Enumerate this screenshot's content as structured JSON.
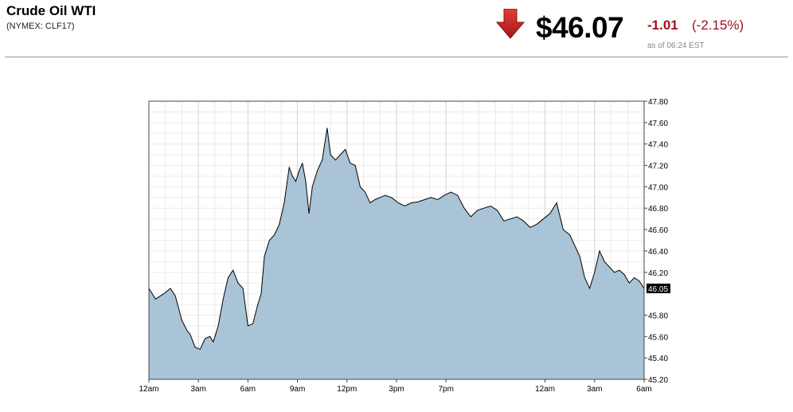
{
  "header": {
    "title": "Crude Oil WTI",
    "subtitle": "(NYMEX: CLF17)",
    "price": "$46.07",
    "change": "-1.01",
    "change_pct": "(-2.15%)",
    "as_of": "as of 06:24 EST",
    "direction_icon": "down-arrow-icon",
    "change_color": "#a01020",
    "arrow_color": "#c8201e"
  },
  "chart_data": {
    "type": "area",
    "fill_color": "#a9c4d7",
    "line_color": "#000000",
    "grid": true,
    "yaxis_side": "right",
    "ylim": [
      45.2,
      47.8
    ],
    "yticks": [
      45.2,
      45.4,
      45.6,
      45.8,
      46.2,
      46.4,
      46.6,
      46.8,
      47.0,
      47.2,
      47.4,
      47.6,
      47.8
    ],
    "ytick_labels": [
      "45.20",
      "45.40",
      "45.60",
      "45.80",
      "46.20",
      "46.40",
      "46.60",
      "46.80",
      "47.00",
      "47.20",
      "47.40",
      "47.60",
      "47.80"
    ],
    "xlim": [
      0,
      30
    ],
    "xticks": [
      0,
      3,
      6,
      9,
      12,
      15,
      18,
      24,
      27,
      30
    ],
    "xtick_labels": [
      "12am",
      "3am",
      "6am",
      "9am",
      "12pm",
      "3pm",
      "7pm",
      "12am",
      "3am",
      "6am"
    ],
    "last_value": 46.05,
    "last_label": "46.05",
    "series": [
      {
        "x": [
          0,
          0.4,
          0.9,
          1.3,
          1.6,
          2.0,
          2.3,
          2.5,
          2.8,
          3.1,
          3.4,
          3.7,
          3.9,
          4.2,
          4.5,
          4.8,
          5.1,
          5.4,
          5.7,
          6.0,
          6.3,
          6.6,
          6.8,
          7.0,
          7.3,
          7.6,
          7.9,
          8.2,
          8.5,
          8.7,
          8.9,
          9.1,
          9.3,
          9.5,
          9.7,
          9.9,
          10.2,
          10.5,
          10.8,
          11.0,
          11.3,
          11.6,
          11.9,
          12.2,
          12.5,
          12.8,
          13.1,
          13.4,
          13.7,
          14.0,
          14.3,
          14.7,
          15.1,
          15.5,
          15.9,
          16.3,
          16.7,
          17.1,
          17.5,
          17.9,
          18.3,
          18.7,
          19.1,
          19.5,
          19.9,
          20.3,
          20.7,
          21.1,
          21.5,
          21.9,
          22.3,
          22.7,
          23.1,
          23.5,
          23.9,
          24.3,
          24.7,
          25.1,
          25.5,
          25.8,
          26.1,
          26.4,
          26.7,
          27.0,
          27.3,
          27.6,
          27.9,
          28.2,
          28.5,
          28.8,
          29.1,
          29.4,
          29.7,
          30.0
        ],
        "y": [
          46.05,
          45.95,
          46.0,
          46.05,
          45.98,
          45.75,
          45.66,
          45.62,
          45.5,
          45.48,
          45.58,
          45.6,
          45.55,
          45.7,
          45.95,
          46.15,
          46.22,
          46.1,
          46.05,
          45.7,
          45.72,
          45.9,
          46.0,
          46.35,
          46.5,
          46.55,
          46.65,
          46.85,
          47.18,
          47.1,
          47.05,
          47.15,
          47.22,
          47.05,
          46.75,
          47.0,
          47.15,
          47.25,
          47.55,
          47.3,
          47.25,
          47.3,
          47.35,
          47.22,
          47.2,
          47.0,
          46.95,
          46.85,
          46.88,
          46.9,
          46.92,
          46.9,
          46.85,
          46.82,
          46.85,
          46.86,
          46.88,
          46.9,
          46.88,
          46.92,
          46.95,
          46.92,
          46.8,
          46.72,
          46.78,
          46.8,
          46.82,
          46.78,
          46.68,
          46.7,
          46.72,
          46.68,
          46.62,
          46.65,
          46.7,
          46.75,
          46.85,
          46.6,
          46.55,
          46.45,
          46.35,
          46.15,
          46.05,
          46.2,
          46.4,
          46.3,
          46.25,
          46.2,
          46.22,
          46.18,
          46.1,
          46.15,
          46.12,
          46.05
        ]
      }
    ]
  }
}
